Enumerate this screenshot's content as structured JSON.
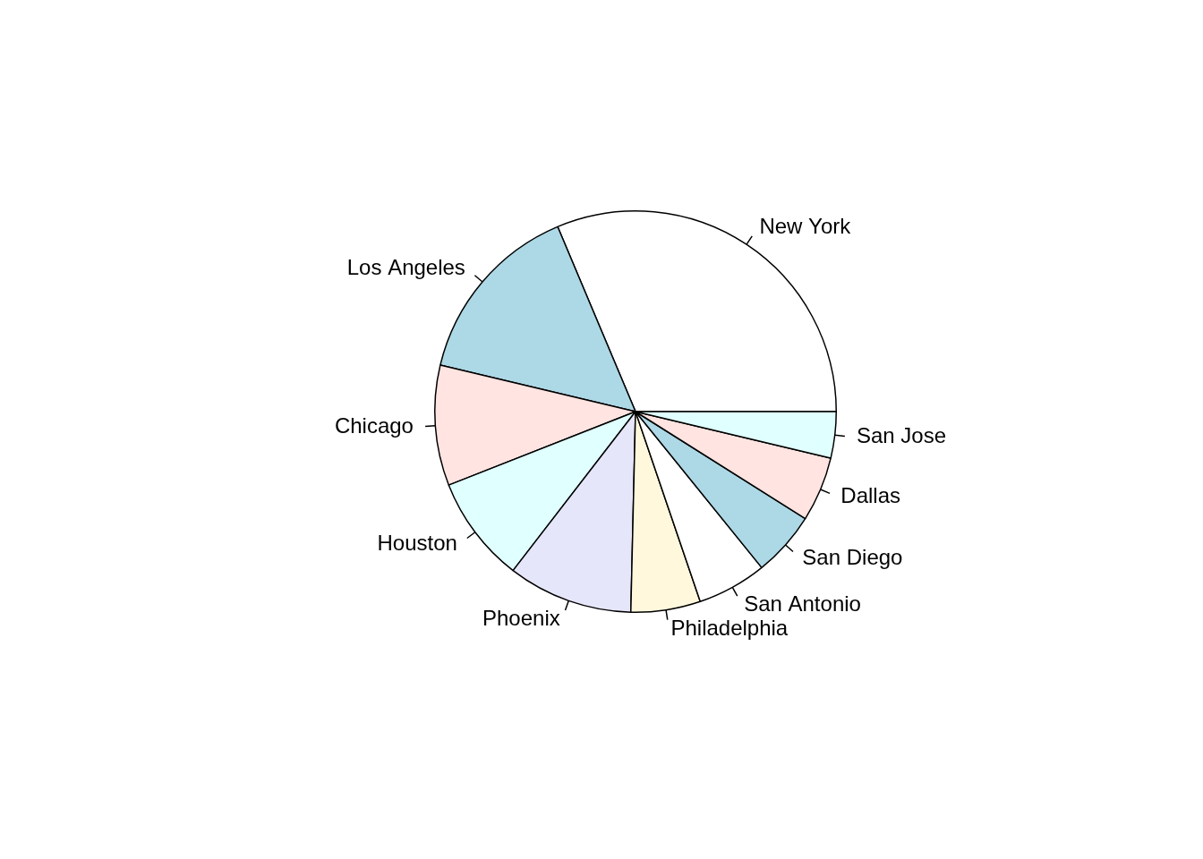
{
  "chart_data": {
    "type": "pie",
    "categories": [
      "New York",
      "Los Angeles",
      "Chicago",
      "Houston",
      "Phoenix",
      "Philadelphia",
      "San Antonio",
      "San Diego",
      "Dallas",
      "San Jose"
    ],
    "values": [
      8.4,
      4.0,
      2.6,
      2.3,
      2.7,
      1.5,
      1.5,
      1.4,
      1.4,
      1.0
    ],
    "colors": [
      "#ffffff",
      "#add8e6",
      "#ffe4e1",
      "#e0ffff",
      "#e6e6fa",
      "#fff8dc",
      "#ffffff",
      "#add8e6",
      "#ffe4e1",
      "#e0ffff"
    ]
  }
}
